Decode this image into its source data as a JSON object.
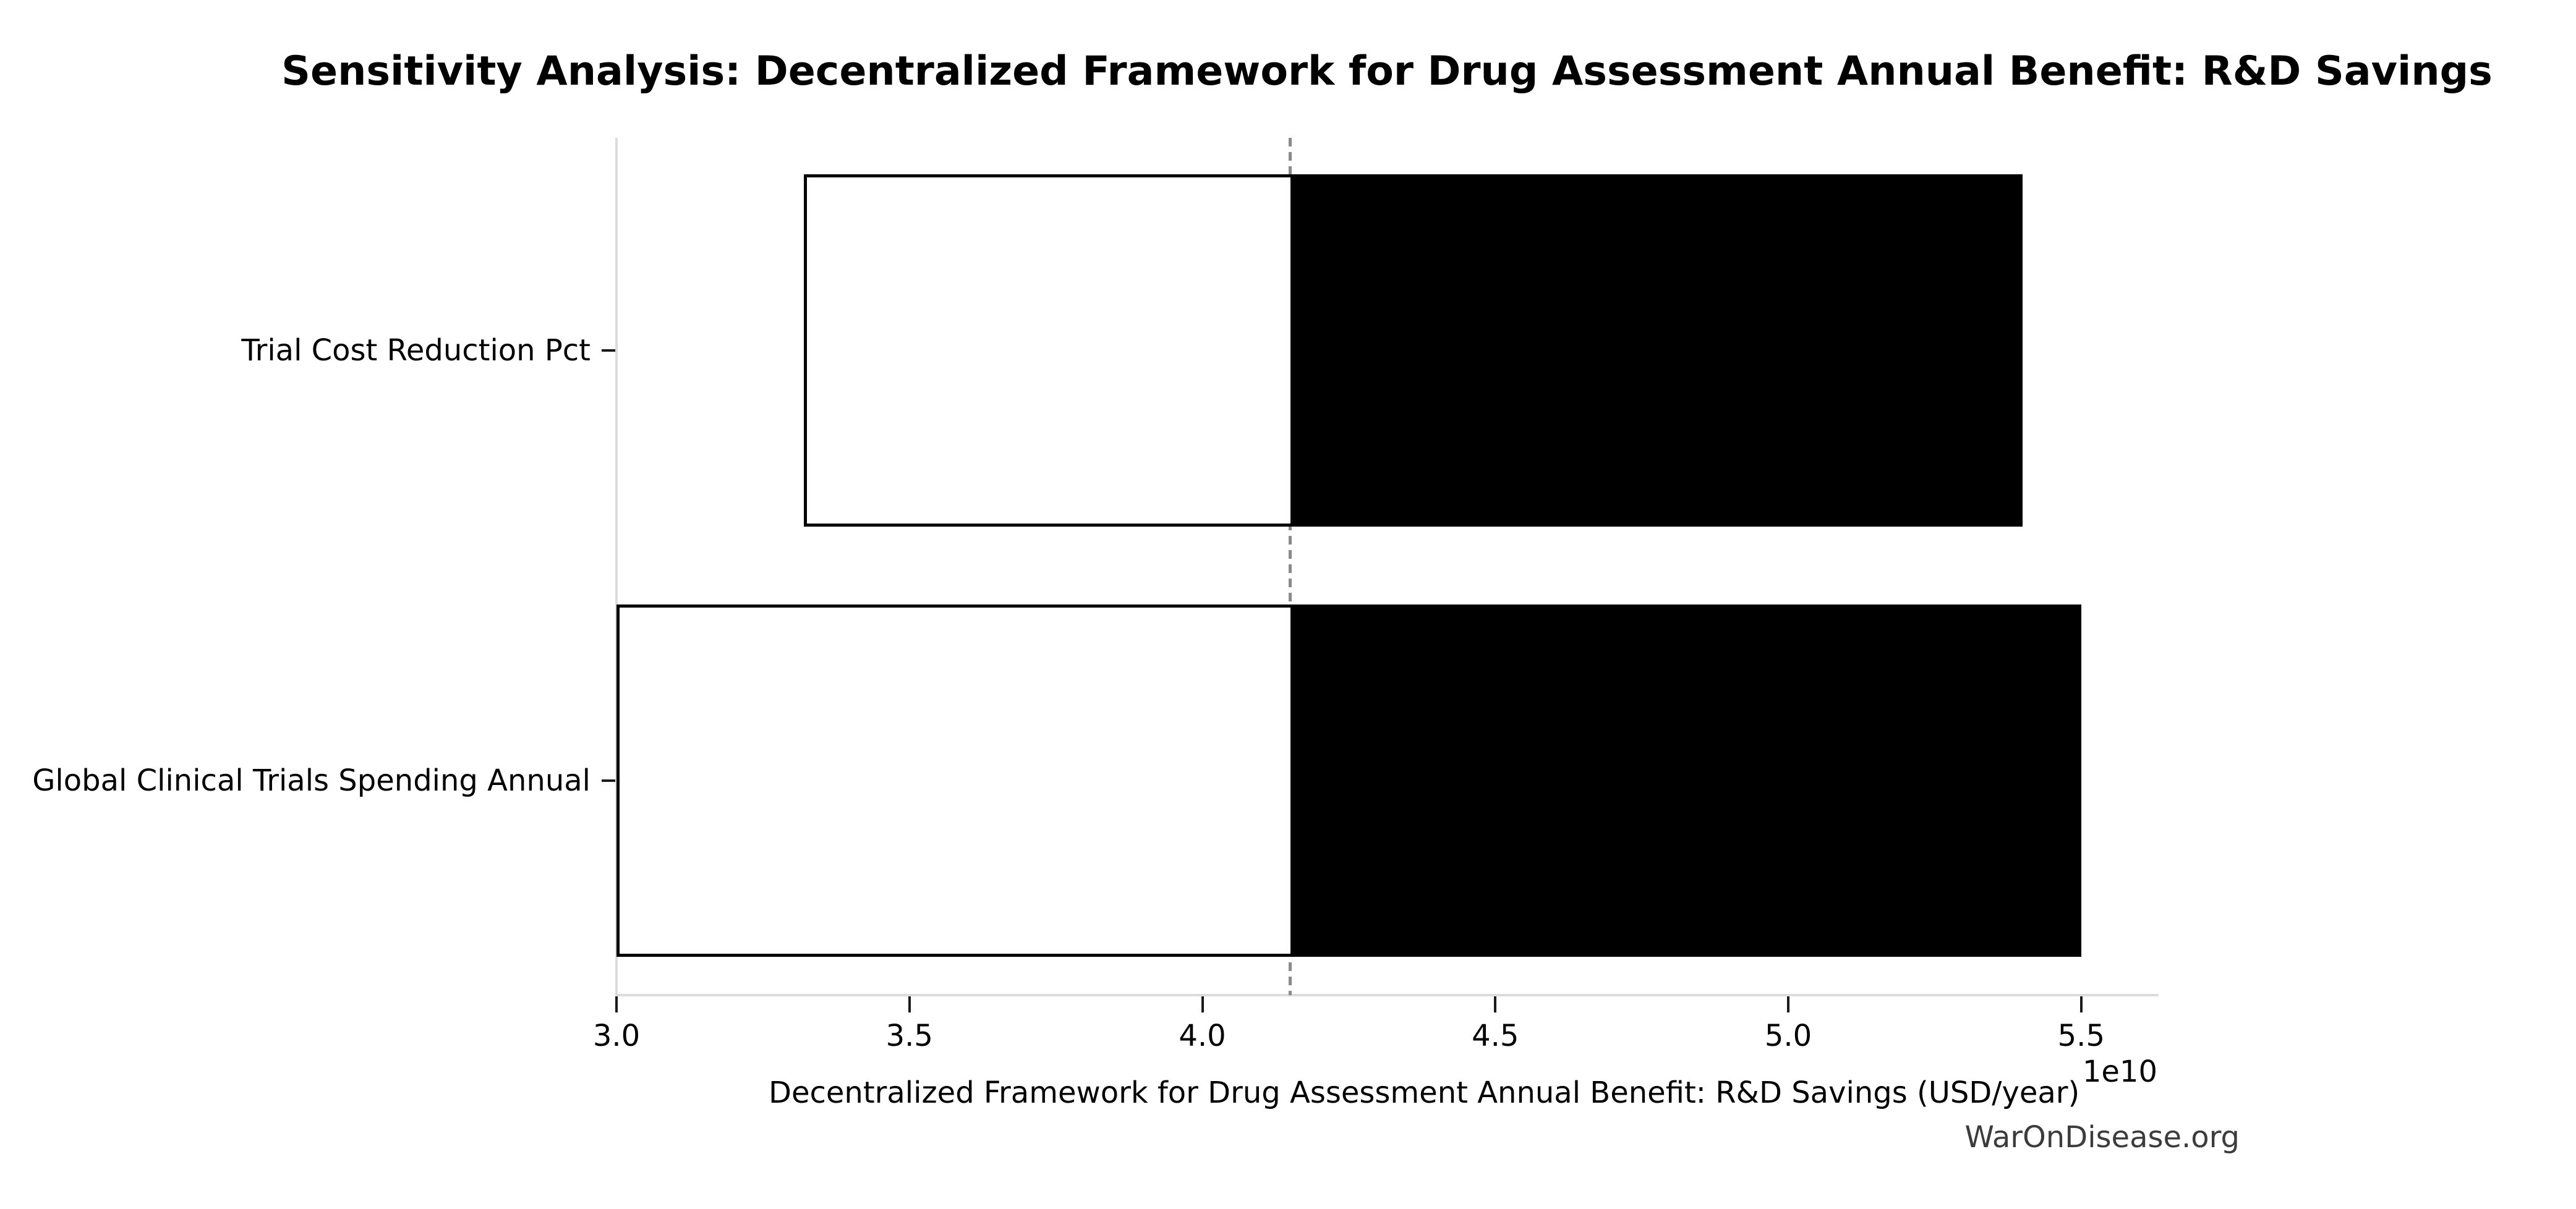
{
  "page": {
    "background_color": "#ffffff",
    "text_color": "#000000"
  },
  "watermark": "WarOnDisease.org",
  "chart_data": {
    "type": "bar",
    "subtype": "tornado-sensitivity-horizontal",
    "title": "Sensitivity Analysis: Decentralized Framework for Drug Assessment Annual Benefit: R&D Savings",
    "xlabel": "Decentralized Framework for Drug Assessment Annual Benefit: R&D Savings (USD/year)",
    "ylabel": "",
    "x_offset_text": "1e10",
    "x_unit_multiplier": 10000000000,
    "xlim": [
      3.0,
      5.63
    ],
    "x_ticks": [
      3.0,
      3.5,
      4.0,
      4.5,
      5.0,
      5.5
    ],
    "x_tick_labels": [
      "3.0",
      "3.5",
      "4.0",
      "4.5",
      "5.0",
      "5.5"
    ],
    "baseline_value": 4.15,
    "baseline_value_usd": 41500000000,
    "grid": false,
    "legend": null,
    "categories": [
      "Trial Cost Reduction Pct",
      "Global Clinical Trials Spending Annual"
    ],
    "rows": [
      {
        "label": "Trial Cost Reduction Pct",
        "low": 3.32,
        "high": 5.4,
        "low_usd": 33200000000,
        "high_usd": 54000000000
      },
      {
        "label": "Global Clinical Trials Spending Annual",
        "low": 3.0,
        "high": 5.5,
        "low_usd": 30000000000,
        "high_usd": 55000000000
      }
    ],
    "colors": {
      "low_side_fill": "#ffffff",
      "high_side_fill": "#000000",
      "bar_border": "#000000",
      "baseline_dash": "#8a8a8a",
      "spine": "#dcdcdc",
      "tick_mark": "#1a1a1a",
      "watermark_text": "#3c3c3c"
    }
  }
}
